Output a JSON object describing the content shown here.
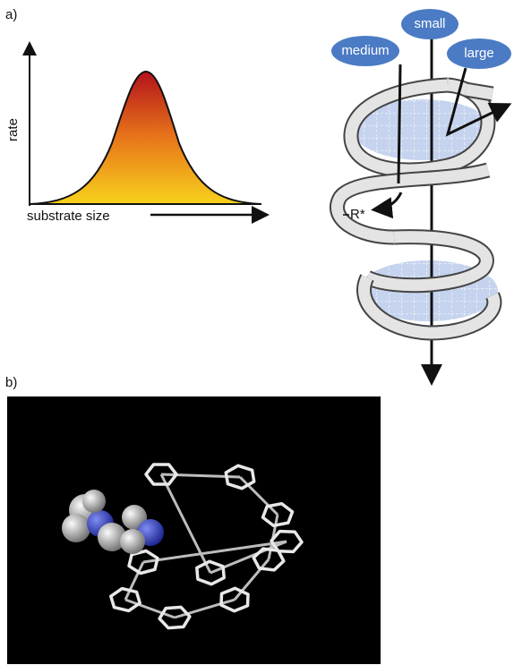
{
  "panel_a": {
    "label": "a)",
    "plot": {
      "y_label": "rate",
      "x_label": "substrate size"
    },
    "helix": {
      "labels": [
        "medium",
        "small",
        "large"
      ],
      "substituent": "R*"
    }
  },
  "panel_b": {
    "label": "b)"
  }
}
